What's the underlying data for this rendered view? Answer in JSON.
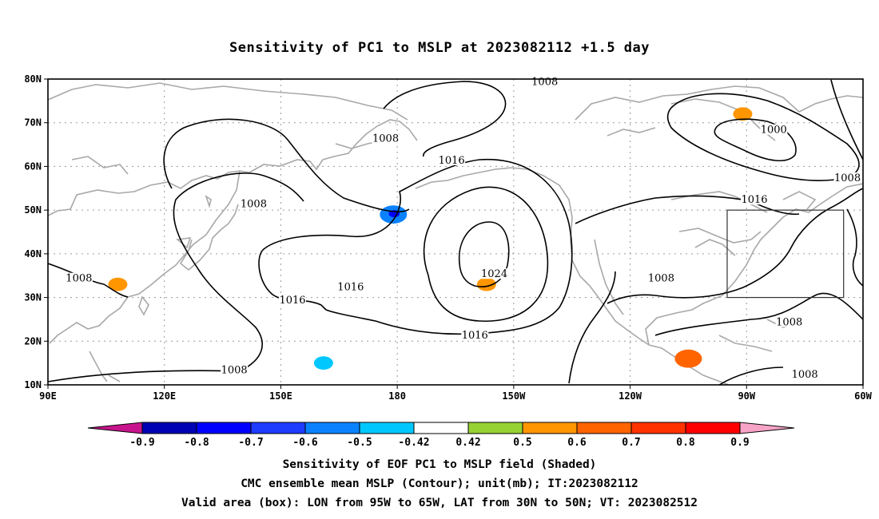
{
  "chart_data": {
    "type": "contour_map",
    "title": "Sensitivity of PC1 to MSLP at 2023082112 +1.5 day",
    "x_ticks": [
      "90E",
      "120E",
      "150E",
      "180",
      "150W",
      "120W",
      "90W",
      "60W"
    ],
    "y_ticks": [
      "80N",
      "70N",
      "60N",
      "50N",
      "40N",
      "30N",
      "20N",
      "10N"
    ],
    "lon_range": [
      90,
      300
    ],
    "lat_range": [
      10,
      80
    ],
    "grid": "dotted",
    "contour_labels": [
      {
        "text": "1008",
        "lon": 218,
        "lat": 79
      },
      {
        "text": "1008",
        "lon": 177,
        "lat": 66
      },
      {
        "text": "1000",
        "lon": 277,
        "lat": 68
      },
      {
        "text": "1008",
        "lon": 296,
        "lat": 57
      },
      {
        "text": "1016",
        "lon": 194,
        "lat": 61
      },
      {
        "text": "1016",
        "lon": 272,
        "lat": 52
      },
      {
        "text": "1008",
        "lon": 143,
        "lat": 51
      },
      {
        "text": "1008",
        "lon": 98,
        "lat": 34
      },
      {
        "text": "1016",
        "lon": 168,
        "lat": 32
      },
      {
        "text": "1016",
        "lon": 153,
        "lat": 29
      },
      {
        "text": "1024",
        "lon": 205,
        "lat": 35
      },
      {
        "text": "1008",
        "lon": 248,
        "lat": 34
      },
      {
        "text": "1016",
        "lon": 200,
        "lat": 21
      },
      {
        "text": "1008",
        "lon": 281,
        "lat": 24
      },
      {
        "text": "1008",
        "lon": 138,
        "lat": 13
      },
      {
        "text": "1008",
        "lon": 285,
        "lat": 12
      }
    ],
    "shaded_regions": [
      {
        "lon": 179,
        "lat": 49,
        "value": -0.6
      },
      {
        "lon": 203,
        "lat": 33,
        "value": 0.5
      },
      {
        "lon": 255,
        "lat": 16,
        "value": 0.6
      },
      {
        "lon": 108,
        "lat": 33,
        "value": 0.5
      },
      {
        "lon": 161,
        "lat": 15,
        "value": -0.5
      },
      {
        "lon": 269,
        "lat": 72,
        "value": 0.5
      }
    ],
    "valid_box": {
      "lon": [
        265,
        295
      ],
      "lat": [
        30,
        50
      ]
    },
    "colorbar": {
      "labels": [
        "-0.9",
        "-0.8",
        "-0.7",
        "-0.6",
        "-0.5",
        "-0.42",
        "0.42",
        "0.5",
        "0.6",
        "0.7",
        "0.8",
        "0.9"
      ],
      "colors": [
        "#0000b4",
        "#0000ff",
        "#1e3cff",
        "#0a82ff",
        "#00c8ff",
        "#ffffff",
        "#96d232",
        "#ff9600",
        "#ff6400",
        "#ff3200",
        "#ff0000"
      ],
      "low_color": "#c8148c",
      "high_color": "#f7a3c6"
    },
    "colors": {
      "contour": "#000000",
      "coast": "#a8a8a8",
      "grid": "#9a9a9a"
    }
  },
  "captions": {
    "line1": "Sensitivity of EOF PC1 to MSLP field (Shaded)",
    "line2": "CMC ensemble mean MSLP (Contour); unit(mb); IT:2023082112",
    "line3": "Valid area (box): LON from 95W to 65W, LAT from 30N to 50N; VT: 2023082512"
  }
}
